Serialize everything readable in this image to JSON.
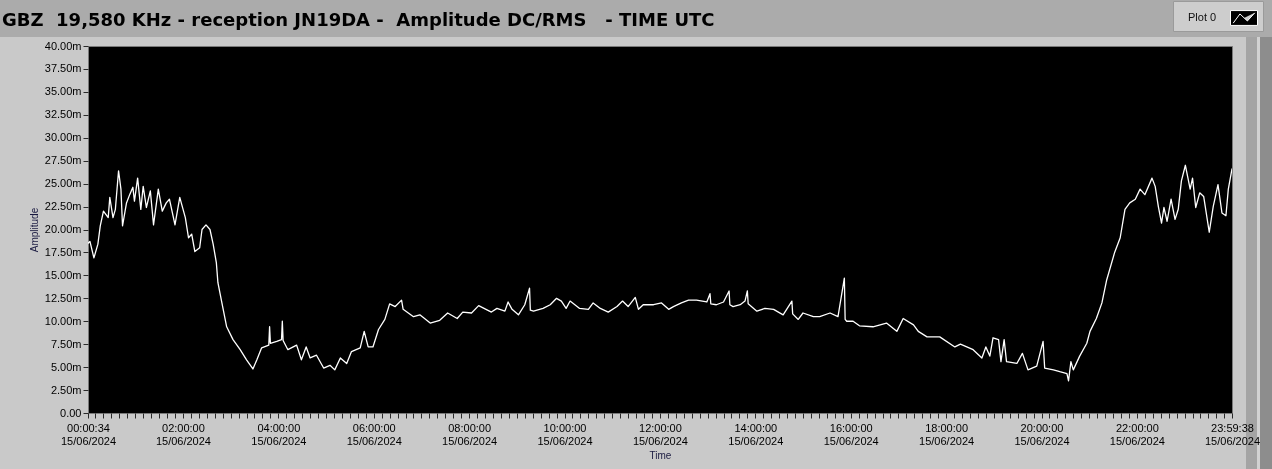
{
  "chart_data": {
    "type": "line",
    "title": "GBZ  19,580 KHz - reception JN19DA -  Amplitude DC/RMS   - TIME UTC",
    "xlabel": "Time",
    "ylabel": "Amplitude",
    "legend": "top right",
    "x": [
      "2024-06-15T00:00:34",
      "2024-06-15T00:03",
      "2024-06-15T00:08",
      "2024-06-15T00:13",
      "2024-06-15T00:16",
      "2024-06-15T00:20",
      "2024-06-15T00:26",
      "2024-06-15T00:28",
      "2024-06-15T00:32",
      "2024-06-15T00:35",
      "2024-06-15T00:39",
      "2024-06-15T00:42",
      "2024-06-15T00:44",
      "2024-06-15T00:49",
      "2024-06-15T00:53",
      "2024-06-15T00:57",
      "2024-06-15T00:59",
      "2024-06-15T01:03",
      "2024-06-15T01:07",
      "2024-06-15T01:10",
      "2024-06-15T01:14",
      "2024-06-15T01:19",
      "2024-06-15T01:23",
      "2024-06-15T01:29",
      "2024-06-15T01:34",
      "2024-06-15T01:39",
      "2024-06-15T01:43",
      "2024-06-15T01:50",
      "2024-06-15T01:56",
      "2024-06-15T02:03",
      "2024-06-15T02:07",
      "2024-06-15T02:11",
      "2024-06-15T02:15",
      "2024-06-15T02:21",
      "2024-06-15T02:24",
      "2024-06-15T02:29",
      "2024-06-15T02:34",
      "2024-06-15T02:38",
      "2024-06-15T02:42",
      "2024-06-15T02:44",
      "2024-06-15T02:49",
      "2024-06-15T02:55",
      "2024-06-15T03:03",
      "2024-06-15T03:12",
      "2024-06-15T03:20",
      "2024-06-15T03:28",
      "2024-06-15T03:33",
      "2024-06-15T03:39",
      "2024-06-15T03:48",
      "2024-06-15T03:49",
      "2024-06-15T03:50",
      "2024-06-15T03:58",
      "2024-06-15T04:04",
      "2024-06-15T04:05",
      "2024-06-15T04:06",
      "2024-06-15T04:12",
      "2024-06-15T04:23",
      "2024-06-15T04:29",
      "2024-06-15T04:35",
      "2024-06-15T04:40",
      "2024-06-15T04:48",
      "2024-06-15T04:57",
      "2024-06-15T05:05",
      "2024-06-15T05:11",
      "2024-06-15T05:18",
      "2024-06-15T05:26",
      "2024-06-15T05:32",
      "2024-06-15T05:43",
      "2024-06-15T05:48",
      "2024-06-15T05:53",
      "2024-06-15T05:59",
      "2024-06-15T06:06",
      "2024-06-15T06:14",
      "2024-06-15T06:20",
      "2024-06-15T06:27",
      "2024-06-15T06:35",
      "2024-06-15T06:37",
      "2024-06-15T06:50",
      "2024-06-15T06:58",
      "2024-06-15T07:11",
      "2024-06-15T07:23",
      "2024-06-15T07:33",
      "2024-06-15T07:45",
      "2024-06-15T07:52",
      "2024-06-15T08:03",
      "2024-06-15T08:12",
      "2024-06-15T08:28",
      "2024-06-15T08:35",
      "2024-06-15T08:45",
      "2024-06-15T08:49",
      "2024-06-15T08:54",
      "2024-06-15T09:02",
      "2024-06-15T09:10",
      "2024-06-15T09:16",
      "2024-06-15T09:17",
      "2024-06-15T09:21",
      "2024-06-15T09:33",
      "2024-06-15T09:42",
      "2024-06-15T09:50",
      "2024-06-15T09:56",
      "2024-06-15T10:02",
      "2024-06-15T10:07",
      "2024-06-15T10:19",
      "2024-06-15T10:30",
      "2024-06-15T10:36",
      "2024-06-15T10:45",
      "2024-06-15T10:55",
      "2024-06-15T11:06",
      "2024-06-15T11:13",
      "2024-06-15T11:20",
      "2024-06-15T11:29",
      "2024-06-15T11:33",
      "2024-06-15T11:39",
      "2024-06-15T11:52",
      "2024-06-15T12:02",
      "2024-06-15T12:11",
      "2024-06-15T12:17",
      "2024-06-15T12:27",
      "2024-06-15T12:36",
      "2024-06-15T12:46",
      "2024-06-15T12:59",
      "2024-06-15T13:03",
      "2024-06-15T13:04",
      "2024-06-15T13:11",
      "2024-06-15T13:20",
      "2024-06-15T13:27",
      "2024-06-15T13:28",
      "2024-06-15T13:32",
      "2024-06-15T13:41",
      "2024-06-15T13:47",
      "2024-06-15T13:50",
      "2024-06-15T13:51",
      "2024-06-15T14:02",
      "2024-06-15T14:12",
      "2024-06-15T14:23",
      "2024-06-15T14:35",
      "2024-06-15T14:46",
      "2024-06-15T14:47",
      "2024-06-15T14:54",
      "2024-06-15T15:00",
      "2024-06-15T15:13",
      "2024-06-15T15:21",
      "2024-06-15T15:34",
      "2024-06-15T15:44",
      "2024-06-15T15:52",
      "2024-06-15T15:53",
      "2024-06-15T15:55",
      "2024-06-15T16:03",
      "2024-06-15T16:11",
      "2024-06-15T16:28",
      "2024-06-15T16:45",
      "2024-06-15T16:58",
      "2024-06-15T17:06",
      "2024-06-15T17:19",
      "2024-06-15T17:25",
      "2024-06-15T17:36",
      "2024-06-15T17:52",
      "2024-06-15T18:11",
      "2024-06-15T18:18",
      "2024-06-15T18:34",
      "2024-06-15T18:45",
      "2024-06-15T18:50",
      "2024-06-15T18:55",
      "2024-06-15T18:59",
      "2024-06-15T19:06",
      "2024-06-15T19:09",
      "2024-06-15T19:13",
      "2024-06-15T19:16",
      "2024-06-15T19:29",
      "2024-06-15T19:36",
      "2024-06-15T19:43",
      "2024-06-15T19:54",
      "2024-06-15T20:02",
      "2024-06-15T20:04",
      "2024-06-15T20:15",
      "2024-06-15T20:23",
      "2024-06-15T20:32",
      "2024-06-15T20:34",
      "2024-06-15T20:37",
      "2024-06-15T20:40",
      "2024-06-15T20:48",
      "2024-06-15T20:57",
      "2024-06-15T21:01",
      "2024-06-15T21:09",
      "2024-06-15T21:16",
      "2024-06-15T21:22",
      "2024-06-15T21:32",
      "2024-06-15T21:39",
      "2024-06-15T21:45",
      "2024-06-15T21:51",
      "2024-06-15T21:58",
      "2024-06-15T22:04",
      "2024-06-15T22:10",
      "2024-06-15T22:19",
      "2024-06-15T22:23",
      "2024-06-15T22:27",
      "2024-06-15T22:31",
      "2024-06-15T22:34",
      "2024-06-15T22:38",
      "2024-06-15T22:43",
      "2024-06-15T22:48",
      "2024-06-15T22:52",
      "2024-06-15T22:56",
      "2024-06-15T23:01",
      "2024-06-15T23:07",
      "2024-06-15T23:10",
      "2024-06-15T23:14",
      "2024-06-15T23:19",
      "2024-06-15T23:24",
      "2024-06-15T23:31",
      "2024-06-15T23:36",
      "2024-06-15T23:42",
      "2024-06-15T23:47",
      "2024-06-15T23:52",
      "2024-06-15T23:55",
      "2024-06-15T23:59:38"
    ],
    "series": [
      {
        "name": "Plot 0",
        "color": "#ffffff",
        "values": [
          18.5,
          18.7,
          16.9,
          18.4,
          20.4,
          22.0,
          21.3,
          23.5,
          21.3,
          22.2,
          26.4,
          24.4,
          20.4,
          22.9,
          23.8,
          24.6,
          23.1,
          25.6,
          22.2,
          24.7,
          22.4,
          24.2,
          20.5,
          24.4,
          22.0,
          22.9,
          23.3,
          20.5,
          23.5,
          21.3,
          19.1,
          19.5,
          17.6,
          18.0,
          20.0,
          20.5,
          20.0,
          18.4,
          16.4,
          14.2,
          12.0,
          9.4,
          8.0,
          6.9,
          5.8,
          4.8,
          5.8,
          7.1,
          7.4,
          9.4,
          7.6,
          7.8,
          8.0,
          10.0,
          7.9,
          6.9,
          7.4,
          5.8,
          7.2,
          6.0,
          6.3,
          4.9,
          5.2,
          4.7,
          6.0,
          5.4,
          6.7,
          7.1,
          8.9,
          7.2,
          7.2,
          9.1,
          10.2,
          11.9,
          11.6,
          12.3,
          11.3,
          10.5,
          10.7,
          9.8,
          10.1,
          10.9,
          10.3,
          11.0,
          10.9,
          11.7,
          11.0,
          11.4,
          11.1,
          12.1,
          11.3,
          10.7,
          11.8,
          13.6,
          11.2,
          11.1,
          11.4,
          11.8,
          12.5,
          12.2,
          11.4,
          12.2,
          11.4,
          11.3,
          12.0,
          11.4,
          11.0,
          11.6,
          12.2,
          11.6,
          12.6,
          11.3,
          11.8,
          11.8,
          12.0,
          11.3,
          11.6,
          12.0,
          12.3,
          12.3,
          12.1,
          13.0,
          11.9,
          11.8,
          12.1,
          13.3,
          11.8,
          11.6,
          11.8,
          12.2,
          13.3,
          11.9,
          11.1,
          11.4,
          11.3,
          10.7,
          12.2,
          10.8,
          10.2,
          10.9,
          10.5,
          10.5,
          10.9,
          10.5,
          14.7,
          10.2,
          10.0,
          10.0,
          9.5,
          9.4,
          9.8,
          8.9,
          10.3,
          9.6,
          8.9,
          8.3,
          8.3,
          7.2,
          7.5,
          6.9,
          6.0,
          7.2,
          6.2,
          8.2,
          8.0,
          5.6,
          8.0,
          5.6,
          5.4,
          6.5,
          4.7,
          5.1,
          7.8,
          4.9,
          4.7,
          4.5,
          4.3,
          3.5,
          5.6,
          4.7,
          6.2,
          7.6,
          8.9,
          10.3,
          12.0,
          14.5,
          17.5,
          19.1,
          22.2,
          22.9,
          23.3,
          24.4,
          23.8,
          25.6,
          24.7,
          22.5,
          20.7,
          22.4,
          20.9,
          23.3,
          21.1,
          22.2,
          25.3,
          27.0,
          24.4,
          25.6,
          22.4,
          24.0,
          23.6,
          19.7,
          22.5,
          24.9,
          21.8,
          21.5,
          24.4,
          26.6
        ]
      }
    ],
    "xlim": [
      "2024-06-15T00:00:34",
      "2024-06-15T23:59:38"
    ],
    "xticks": [
      {
        "value": "2024-06-15T00:00:34",
        "label": "00:00:34\n15/06/2024"
      },
      {
        "value": "2024-06-15T00:10",
        "label": null
      },
      {
        "value": "2024-06-15T00:20",
        "label": null
      },
      {
        "value": "2024-06-15T00:30",
        "label": null
      },
      {
        "value": "2024-06-15T00:40",
        "label": null
      },
      {
        "value": "2024-06-15T00:50",
        "label": null
      },
      {
        "value": "2024-06-15T01:00",
        "label": null
      },
      {
        "value": "2024-06-15T01:10",
        "label": null
      },
      {
        "value": "2024-06-15T01:20",
        "label": null
      },
      {
        "value": "2024-06-15T01:30",
        "label": null
      },
      {
        "value": "2024-06-15T01:40",
        "label": null
      },
      {
        "value": "2024-06-15T01:50",
        "label": null
      },
      {
        "value": "2024-06-15T02:00",
        "label": "02:00:00\n15/06/2024"
      },
      {
        "value": "2024-06-15T02:10",
        "label": null
      },
      {
        "value": "2024-06-15T02:20",
        "label": null
      },
      {
        "value": "2024-06-15T02:30",
        "label": null
      },
      {
        "value": "2024-06-15T02:40",
        "label": null
      },
      {
        "value": "2024-06-15T02:50",
        "label": null
      },
      {
        "value": "2024-06-15T03:00",
        "label": null
      },
      {
        "value": "2024-06-15T03:10",
        "label": null
      },
      {
        "value": "2024-06-15T03:20",
        "label": null
      },
      {
        "value": "2024-06-15T03:30",
        "label": null
      },
      {
        "value": "2024-06-15T03:40",
        "label": null
      },
      {
        "value": "2024-06-15T03:50",
        "label": null
      },
      {
        "value": "2024-06-15T04:00",
        "label": "04:00:00\n15/06/2024"
      },
      {
        "value": "2024-06-15T04:10",
        "label": null
      },
      {
        "value": "2024-06-15T04:20",
        "label": null
      },
      {
        "value": "2024-06-15T04:30",
        "label": null
      },
      {
        "value": "2024-06-15T04:40",
        "label": null
      },
      {
        "value": "2024-06-15T04:50",
        "label": null
      },
      {
        "value": "2024-06-15T05:00",
        "label": null
      },
      {
        "value": "2024-06-15T05:10",
        "label": null
      },
      {
        "value": "2024-06-15T05:20",
        "label": null
      },
      {
        "value": "2024-06-15T05:30",
        "label": null
      },
      {
        "value": "2024-06-15T05:40",
        "label": null
      },
      {
        "value": "2024-06-15T05:50",
        "label": null
      },
      {
        "value": "2024-06-15T06:00",
        "label": "06:00:00\n15/06/2024"
      },
      {
        "value": "2024-06-15T06:10",
        "label": null
      },
      {
        "value": "2024-06-15T06:20",
        "label": null
      },
      {
        "value": "2024-06-15T06:30",
        "label": null
      },
      {
        "value": "2024-06-15T06:40",
        "label": null
      },
      {
        "value": "2024-06-15T06:50",
        "label": null
      },
      {
        "value": "2024-06-15T07:00",
        "label": null
      },
      {
        "value": "2024-06-15T07:10",
        "label": null
      },
      {
        "value": "2024-06-15T07:20",
        "label": null
      },
      {
        "value": "2024-06-15T07:30",
        "label": null
      },
      {
        "value": "2024-06-15T07:40",
        "label": null
      },
      {
        "value": "2024-06-15T07:50",
        "label": null
      },
      {
        "value": "2024-06-15T08:00",
        "label": "08:00:00\n15/06/2024"
      },
      {
        "value": "2024-06-15T08:10",
        "label": null
      },
      {
        "value": "2024-06-15T08:20",
        "label": null
      },
      {
        "value": "2024-06-15T08:30",
        "label": null
      },
      {
        "value": "2024-06-15T08:40",
        "label": null
      },
      {
        "value": "2024-06-15T08:50",
        "label": null
      },
      {
        "value": "2024-06-15T09:00",
        "label": null
      },
      {
        "value": "2024-06-15T09:10",
        "label": null
      },
      {
        "value": "2024-06-15T09:20",
        "label": null
      },
      {
        "value": "2024-06-15T09:30",
        "label": null
      },
      {
        "value": "2024-06-15T09:40",
        "label": null
      },
      {
        "value": "2024-06-15T09:50",
        "label": null
      },
      {
        "value": "2024-06-15T10:00",
        "label": "10:00:00\n15/06/2024"
      },
      {
        "value": "2024-06-15T10:10",
        "label": null
      },
      {
        "value": "2024-06-15T10:20",
        "label": null
      },
      {
        "value": "2024-06-15T10:30",
        "label": null
      },
      {
        "value": "2024-06-15T10:40",
        "label": null
      },
      {
        "value": "2024-06-15T10:50",
        "label": null
      },
      {
        "value": "2024-06-15T11:00",
        "label": null
      },
      {
        "value": "2024-06-15T11:10",
        "label": null
      },
      {
        "value": "2024-06-15T11:20",
        "label": null
      },
      {
        "value": "2024-06-15T11:30",
        "label": null
      },
      {
        "value": "2024-06-15T11:40",
        "label": null
      },
      {
        "value": "2024-06-15T11:50",
        "label": null
      },
      {
        "value": "2024-06-15T12:00",
        "label": "12:00:00\n15/06/2024"
      },
      {
        "value": "2024-06-15T12:10",
        "label": null
      },
      {
        "value": "2024-06-15T12:20",
        "label": null
      },
      {
        "value": "2024-06-15T12:30",
        "label": null
      },
      {
        "value": "2024-06-15T12:40",
        "label": null
      },
      {
        "value": "2024-06-15T12:50",
        "label": null
      },
      {
        "value": "2024-06-15T13:00",
        "label": null
      },
      {
        "value": "2024-06-15T13:10",
        "label": null
      },
      {
        "value": "2024-06-15T13:20",
        "label": null
      },
      {
        "value": "2024-06-15T13:30",
        "label": null
      },
      {
        "value": "2024-06-15T13:40",
        "label": null
      },
      {
        "value": "2024-06-15T13:50",
        "label": null
      },
      {
        "value": "2024-06-15T14:00",
        "label": "14:00:00\n15/06/2024"
      },
      {
        "value": "2024-06-15T14:10",
        "label": null
      },
      {
        "value": "2024-06-15T14:20",
        "label": null
      },
      {
        "value": "2024-06-15T14:30",
        "label": null
      },
      {
        "value": "2024-06-15T14:40",
        "label": null
      },
      {
        "value": "2024-06-15T14:50",
        "label": null
      },
      {
        "value": "2024-06-15T15:00",
        "label": null
      },
      {
        "value": "2024-06-15T15:10",
        "label": null
      },
      {
        "value": "2024-06-15T15:20",
        "label": null
      },
      {
        "value": "2024-06-15T15:30",
        "label": null
      },
      {
        "value": "2024-06-15T15:40",
        "label": null
      },
      {
        "value": "2024-06-15T15:50",
        "label": null
      },
      {
        "value": "2024-06-15T16:00",
        "label": "16:00:00\n15/06/2024"
      },
      {
        "value": "2024-06-15T16:10",
        "label": null
      },
      {
        "value": "2024-06-15T16:20",
        "label": null
      },
      {
        "value": "2024-06-15T16:30",
        "label": null
      },
      {
        "value": "2024-06-15T16:40",
        "label": null
      },
      {
        "value": "2024-06-15T16:50",
        "label": null
      },
      {
        "value": "2024-06-15T17:00",
        "label": null
      },
      {
        "value": "2024-06-15T17:10",
        "label": null
      },
      {
        "value": "2024-06-15T17:20",
        "label": null
      },
      {
        "value": "2024-06-15T17:30",
        "label": null
      },
      {
        "value": "2024-06-15T17:40",
        "label": null
      },
      {
        "value": "2024-06-15T17:50",
        "label": null
      },
      {
        "value": "2024-06-15T18:00",
        "label": "18:00:00\n15/06/2024"
      },
      {
        "value": "2024-06-15T18:10",
        "label": null
      },
      {
        "value": "2024-06-15T18:20",
        "label": null
      },
      {
        "value": "2024-06-15T18:30",
        "label": null
      },
      {
        "value": "2024-06-15T18:40",
        "label": null
      },
      {
        "value": "2024-06-15T18:50",
        "label": null
      },
      {
        "value": "2024-06-15T19:00",
        "label": null
      },
      {
        "value": "2024-06-15T19:10",
        "label": null
      },
      {
        "value": "2024-06-15T19:20",
        "label": null
      },
      {
        "value": "2024-06-15T19:30",
        "label": null
      },
      {
        "value": "2024-06-15T19:40",
        "label": null
      },
      {
        "value": "2024-06-15T19:50",
        "label": null
      },
      {
        "value": "2024-06-15T20:00",
        "label": "20:00:00\n15/06/2024"
      },
      {
        "value": "2024-06-15T20:10",
        "label": null
      },
      {
        "value": "2024-06-15T20:20",
        "label": null
      },
      {
        "value": "2024-06-15T20:30",
        "label": null
      },
      {
        "value": "2024-06-15T20:40",
        "label": null
      },
      {
        "value": "2024-06-15T20:50",
        "label": null
      },
      {
        "value": "2024-06-15T21:00",
        "label": null
      },
      {
        "value": "2024-06-15T21:10",
        "label": null
      },
      {
        "value": "2024-06-15T21:20",
        "label": null
      },
      {
        "value": "2024-06-15T21:30",
        "label": null
      },
      {
        "value": "2024-06-15T21:40",
        "label": null
      },
      {
        "value": "2024-06-15T21:50",
        "label": null
      },
      {
        "value": "2024-06-15T22:00",
        "label": "22:00:00\n15/06/2024"
      },
      {
        "value": "2024-06-15T22:10",
        "label": null
      },
      {
        "value": "2024-06-15T22:20",
        "label": null
      },
      {
        "value": "2024-06-15T22:30",
        "label": null
      },
      {
        "value": "2024-06-15T22:40",
        "label": null
      },
      {
        "value": "2024-06-15T22:50",
        "label": null
      },
      {
        "value": "2024-06-15T23:00",
        "label": null
      },
      {
        "value": "2024-06-15T23:10",
        "label": null
      },
      {
        "value": "2024-06-15T23:20",
        "label": null
      },
      {
        "value": "2024-06-15T23:30",
        "label": null
      },
      {
        "value": "2024-06-15T23:40",
        "label": null
      },
      {
        "value": "2024-06-15T23:50",
        "label": null
      },
      {
        "value": "2024-06-15T23:59:38",
        "label": "23:59:38\n15/06/2024"
      }
    ],
    "ylim": [
      0,
      40
    ],
    "yticks": [
      {
        "value": 0,
        "label": "0.00"
      },
      {
        "value": 2.5,
        "label": "2.50m"
      },
      {
        "value": 5,
        "label": "5.00m"
      },
      {
        "value": 7.5,
        "label": "7.50m"
      },
      {
        "value": 10,
        "label": "10.00m"
      },
      {
        "value": 12.5,
        "label": "12.50m"
      },
      {
        "value": 15,
        "label": "15.00m"
      },
      {
        "value": 17.5,
        "label": "17.50m"
      },
      {
        "value": 20,
        "label": "20.00m"
      },
      {
        "value": 22.5,
        "label": "22.50m"
      },
      {
        "value": 25,
        "label": "25.00m"
      },
      {
        "value": 27.5,
        "label": "27.50m"
      },
      {
        "value": 30,
        "label": "30.00m"
      },
      {
        "value": 32.5,
        "label": "32.50m"
      },
      {
        "value": 35,
        "label": "35.00m"
      },
      {
        "value": 37.5,
        "label": "37.50m"
      },
      {
        "value": 40,
        "label": "40.00m"
      }
    ]
  }
}
